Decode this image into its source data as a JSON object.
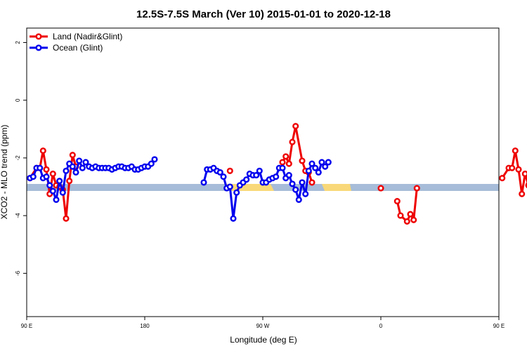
{
  "chart_data": {
    "type": "line",
    "title": "12.5S-7.5S March (Ver 10)   2015-01-01 to 2020-12-18",
    "xlabel": "Longitude (deg E)",
    "ylabel": "XCO2 - MLO trend (ppm)",
    "xlim": [
      90,
      450
    ],
    "ylim": [
      -7.5,
      2.5
    ],
    "x_ticks": [
      {
        "value": 90,
        "label": "90 E"
      },
      {
        "value": 180,
        "label": "180"
      },
      {
        "value": 270,
        "label": "90 W"
      },
      {
        "value": 360,
        "label": "0"
      },
      {
        "value": 450,
        "label": "90 E"
      }
    ],
    "y_ticks": [
      {
        "value": 2,
        "label": "2"
      },
      {
        "value": 0,
        "label": "0"
      },
      {
        "value": -2,
        "label": "-2"
      },
      {
        "value": -4,
        "label": "-4"
      },
      {
        "value": -6,
        "label": "-6"
      }
    ],
    "legend_position": "top-left",
    "series": [
      {
        "name": "Land (Nadir&Glint)",
        "color": "#ee0000",
        "segments": [
          [
            [
              92.5,
              -2.7
            ],
            [
              97.5,
              -2.35
            ],
            [
              100,
              -2.35
            ],
            [
              102.5,
              -1.75
            ],
            [
              105,
              -2.4
            ],
            [
              107.5,
              -3.25
            ],
            [
              110,
              -2.55
            ],
            [
              112.5,
              -2.95
            ],
            [
              115,
              -3
            ],
            [
              117.5,
              -3.1
            ],
            [
              120,
              -4.1
            ],
            [
              122.5,
              -2.8
            ],
            [
              125,
              -1.9
            ],
            [
              127.5,
              -2.3
            ]
          ],
          [
            [
              245,
              -2.45
            ]
          ],
          [
            [
              285,
              -2.15
            ],
            [
              287.5,
              -1.95
            ],
            [
              290,
              -2.2
            ],
            [
              292.5,
              -1.45
            ],
            [
              295,
              -0.9
            ],
            [
              300,
              -2.1
            ],
            [
              302.5,
              -2.45
            ],
            [
              305,
              -2.5
            ],
            [
              307.5,
              -2.85
            ]
          ],
          [
            [
              360,
              -3.05
            ]
          ],
          [
            [
              372.5,
              -3.5
            ],
            [
              375,
              -4
            ],
            [
              380,
              -4.2
            ],
            [
              382.5,
              -3.95
            ],
            [
              385,
              -4.15
            ],
            [
              387.5,
              -3.05
            ]
          ],
          [
            [
              452.5,
              -2.7
            ],
            [
              457.5,
              -2.35
            ],
            [
              460,
              -2.35
            ],
            [
              462.5,
              -1.75
            ],
            [
              465,
              -2.4
            ],
            [
              467.5,
              -3.25
            ],
            [
              470,
              -2.55
            ],
            [
              472.5,
              -2.95
            ],
            [
              475,
              -3
            ],
            [
              477.5,
              -3.1
            ],
            [
              480,
              -4.1
            ],
            [
              482.5,
              -2.8
            ],
            [
              485,
              -1.9
            ],
            [
              487.5,
              -2.3
            ]
          ]
        ]
      },
      {
        "name": "Ocean (Glint)",
        "color": "#0000ee",
        "segments": [
          [
            [
              92.5,
              -2.7
            ],
            [
              95,
              -2.65
            ],
            [
              97.5,
              -2.35
            ],
            [
              100,
              -2.35
            ],
            [
              102.5,
              -2.7
            ],
            [
              105,
              -2.65
            ],
            [
              107.5,
              -2.95
            ],
            [
              110,
              -3.15
            ],
            [
              112.5,
              -3.45
            ],
            [
              115,
              -2.8
            ],
            [
              117.5,
              -3.2
            ],
            [
              120,
              -2.45
            ],
            [
              122.5,
              -2.2
            ],
            [
              125,
              -2.3
            ],
            [
              127.5,
              -2.5
            ],
            [
              130,
              -2.1
            ],
            [
              132.5,
              -2.35
            ],
            [
              135,
              -2.15
            ],
            [
              137.5,
              -2.3
            ],
            [
              140,
              -2.35
            ],
            [
              142.5,
              -2.3
            ],
            [
              145,
              -2.35
            ],
            [
              147.5,
              -2.35
            ],
            [
              150,
              -2.35
            ],
            [
              152.5,
              -2.35
            ],
            [
              155,
              -2.4
            ],
            [
              157.5,
              -2.35
            ],
            [
              160,
              -2.3
            ],
            [
              162.5,
              -2.3
            ],
            [
              165,
              -2.35
            ],
            [
              167.5,
              -2.35
            ],
            [
              170,
              -2.3
            ],
            [
              172.5,
              -2.4
            ],
            [
              175,
              -2.4
            ],
            [
              177.5,
              -2.35
            ],
            [
              180,
              -2.3
            ],
            [
              182.5,
              -2.3
            ],
            [
              185,
              -2.2
            ],
            [
              187.5,
              -2.05
            ]
          ],
          [
            [
              225,
              -2.85
            ],
            [
              227.5,
              -2.4
            ],
            [
              230,
              -2.4
            ],
            [
              232.5,
              -2.35
            ],
            [
              235,
              -2.45
            ],
            [
              237.5,
              -2.5
            ],
            [
              240,
              -2.65
            ],
            [
              242.5,
              -3.05
            ],
            [
              245,
              -3
            ],
            [
              247.5,
              -4.1
            ],
            [
              250,
              -3.2
            ],
            [
              252.5,
              -2.95
            ],
            [
              255,
              -2.85
            ],
            [
              257.5,
              -2.75
            ],
            [
              260,
              -2.55
            ],
            [
              262.5,
              -2.6
            ],
            [
              265,
              -2.6
            ],
            [
              267.5,
              -2.45
            ],
            [
              270,
              -2.85
            ],
            [
              272.5,
              -2.85
            ],
            [
              275,
              -2.75
            ],
            [
              277.5,
              -2.7
            ],
            [
              280,
              -2.65
            ],
            [
              282.5,
              -2.35
            ],
            [
              285,
              -2.35
            ],
            [
              287.5,
              -2.7
            ],
            [
              290,
              -2.6
            ],
            [
              292.5,
              -2.9
            ],
            [
              295,
              -3.1
            ],
            [
              297.5,
              -3.45
            ],
            [
              300,
              -2.85
            ],
            [
              302.5,
              -3.25
            ],
            [
              305,
              -2.45
            ],
            [
              307.5,
              -2.2
            ],
            [
              310,
              -2.35
            ],
            [
              312.5,
              -2.5
            ],
            [
              315,
              -2.15
            ],
            [
              317.5,
              -2.3
            ],
            [
              320,
              -2.15
            ]
          ]
        ]
      }
    ]
  }
}
